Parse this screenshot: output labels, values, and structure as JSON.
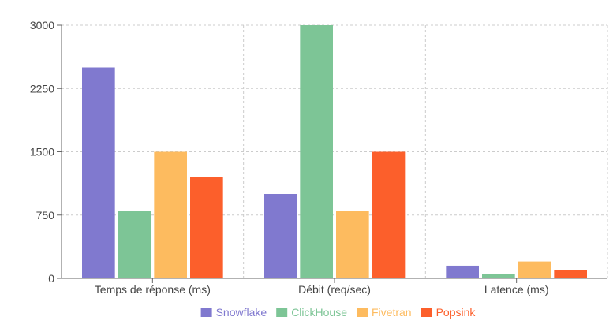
{
  "chart_data": {
    "type": "bar",
    "categories": [
      "Temps de réponse (ms)",
      "Débit (req/sec)",
      "Latence (ms)"
    ],
    "series": [
      {
        "name": "Snowflake",
        "color": "#8079cf",
        "values": [
          2500,
          1000,
          150
        ]
      },
      {
        "name": "ClickHouse",
        "color": "#7dc596",
        "values": [
          800,
          3000,
          50
        ]
      },
      {
        "name": "Fivetran",
        "color": "#fdbb5f",
        "values": [
          1500,
          800,
          200
        ]
      },
      {
        "name": "Popsink",
        "color": "#fc5f2b",
        "values": [
          1200,
          1500,
          100
        ]
      }
    ],
    "ylim": [
      0,
      3000
    ],
    "yticks": [
      0,
      750,
      1500,
      2250,
      3000
    ],
    "title": "",
    "xlabel": "",
    "ylabel": "",
    "grid": true,
    "legend_position": "bottom"
  }
}
